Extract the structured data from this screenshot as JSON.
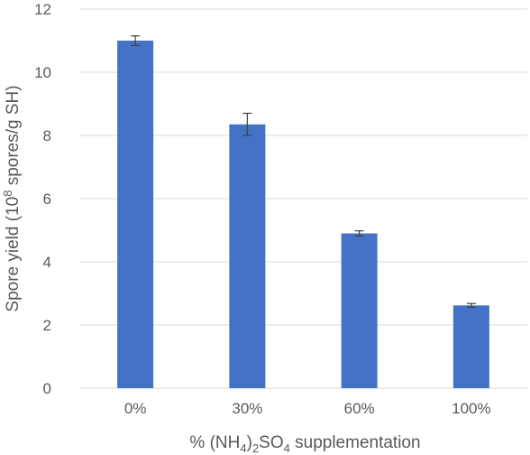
{
  "chart_data": {
    "type": "bar",
    "categories": [
      "0%",
      "30%",
      "60%",
      "100%"
    ],
    "values": [
      11.0,
      8.35,
      4.9,
      2.62
    ],
    "errors": [
      0.15,
      0.35,
      0.08,
      0.06
    ],
    "title": "",
    "xlabel": {
      "parts": [
        {
          "text": "% (NH",
          "sub": false
        },
        {
          "text": "4",
          "sub": true
        },
        {
          "text": ")",
          "sub": false
        },
        {
          "text": "2",
          "sub": true
        },
        {
          "text": "SO",
          "sub": false
        },
        {
          "text": "4",
          "sub": true
        },
        {
          "text": " supplementation",
          "sub": false
        }
      ]
    },
    "ylabel": {
      "parts": [
        {
          "text": "Spore yield (10",
          "sup": false
        },
        {
          "text": "8",
          "sup": true
        },
        {
          "text": " spores/g SH)",
          "sup": false
        }
      ]
    },
    "ylim": [
      0,
      12
    ],
    "yticks": [
      0,
      2,
      4,
      6,
      8,
      10,
      12
    ],
    "grid": true,
    "legend": "none",
    "colors": {
      "bar": "#4472C4",
      "gridline": "#D9D9D9",
      "text": "#595959",
      "errorbar": "#404040"
    }
  }
}
